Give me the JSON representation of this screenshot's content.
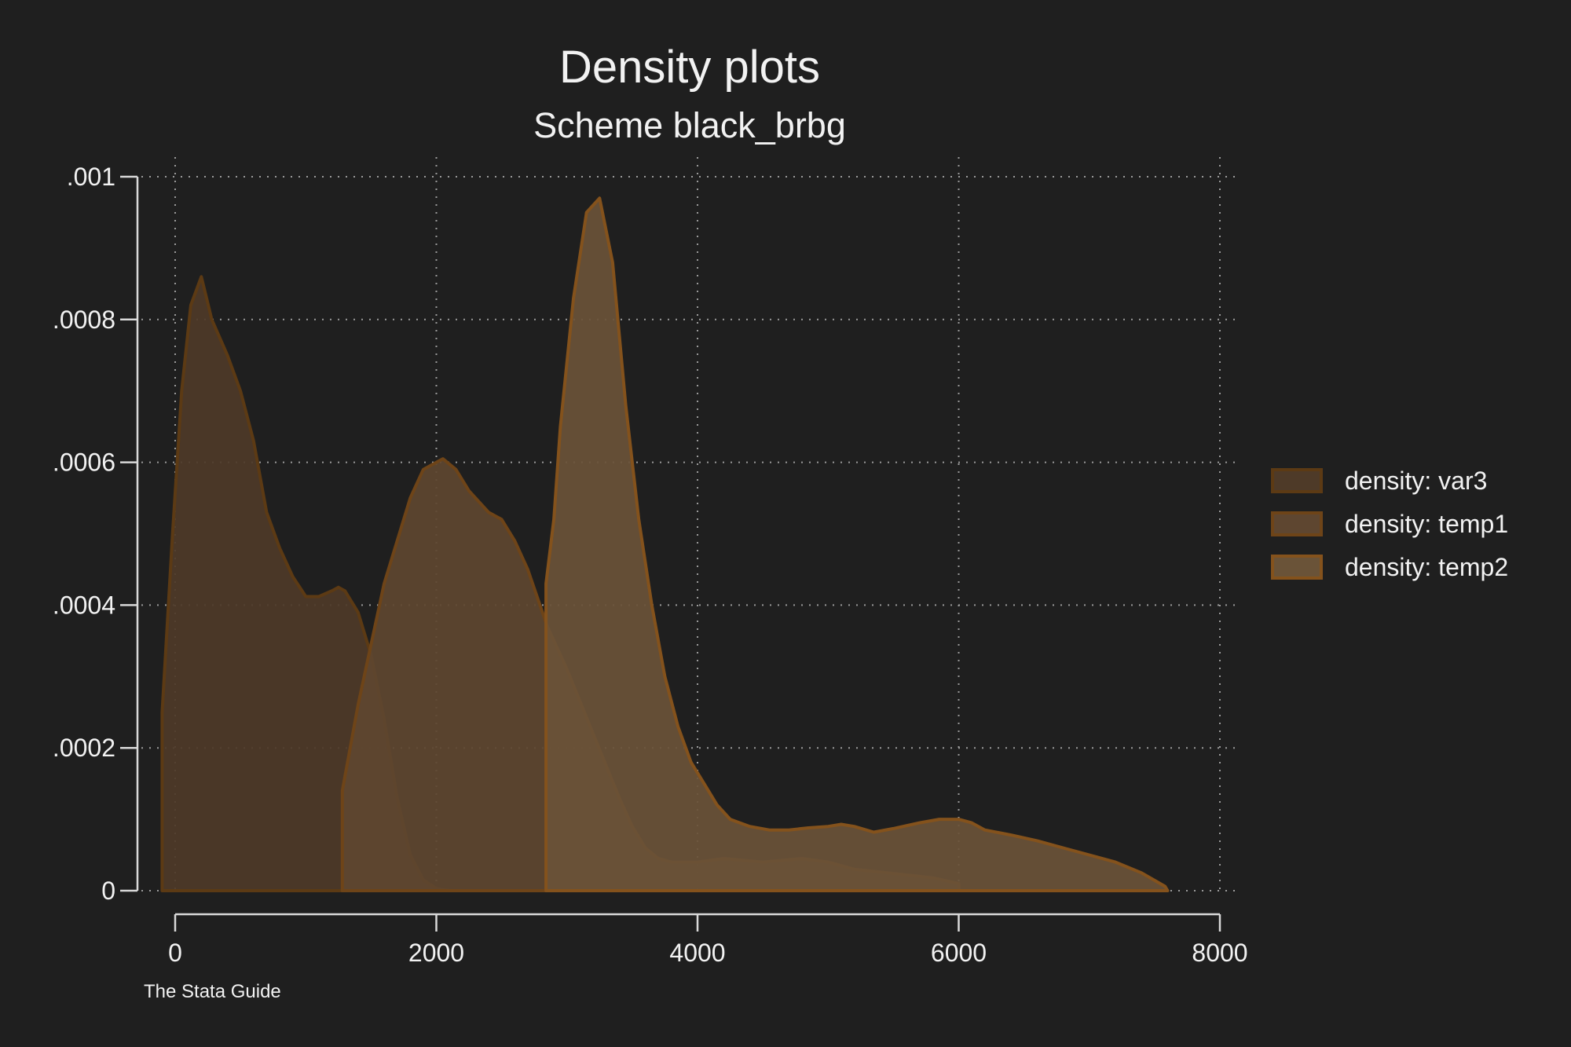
{
  "chart_data": {
    "type": "area",
    "title": "Density plots",
    "subtitle": "Scheme black_brbg",
    "note": "The Stata Guide",
    "xlabel": "",
    "ylabel": "",
    "xlim": [
      0,
      8000
    ],
    "ylim": [
      0,
      0.001
    ],
    "xticks": [
      0,
      2000,
      4000,
      6000,
      8000
    ],
    "xtick_labels": [
      "0",
      "2000",
      "4000",
      "6000",
      "8000"
    ],
    "yticks": [
      0,
      0.0002,
      0.0004,
      0.0006,
      0.0008,
      0.001
    ],
    "ytick_labels": [
      "0",
      ".0002",
      ".0004",
      ".0006",
      ".0008",
      ".001"
    ],
    "grid": true,
    "legend_position": "right",
    "series": [
      {
        "name": "density: var3",
        "fill": "#4e3a28",
        "stroke": "#5c3a14",
        "points": [
          [
            -100,
            0
          ],
          [
            -100,
            0.00025
          ],
          [
            -20,
            0.0005
          ],
          [
            50,
            0.0007
          ],
          [
            120,
            0.00082
          ],
          [
            200,
            0.00086
          ],
          [
            280,
            0.0008
          ],
          [
            400,
            0.00075
          ],
          [
            500,
            0.0007
          ],
          [
            600,
            0.00063
          ],
          [
            700,
            0.00053
          ],
          [
            800,
            0.00048
          ],
          [
            900,
            0.00044
          ],
          [
            1000,
            0.000412
          ],
          [
            1100,
            0.000412
          ],
          [
            1200,
            0.00042
          ],
          [
            1250,
            0.000425
          ],
          [
            1300,
            0.00042
          ],
          [
            1400,
            0.00039
          ],
          [
            1500,
            0.00033
          ],
          [
            1600,
            0.00024
          ],
          [
            1700,
            0.00013
          ],
          [
            1800,
            5e-05
          ],
          [
            1900,
            1.5e-05
          ],
          [
            2000,
            3e-06
          ],
          [
            2100,
            0
          ]
        ]
      },
      {
        "name": "density: temp1",
        "fill": "#5e4630",
        "stroke": "#6e4418",
        "points": [
          [
            1280,
            0
          ],
          [
            1280,
            0.00014
          ],
          [
            1400,
            0.00026
          ],
          [
            1600,
            0.00043
          ],
          [
            1800,
            0.00055
          ],
          [
            1900,
            0.00059
          ],
          [
            2000,
            0.0006
          ],
          [
            2050,
            0.000605
          ],
          [
            2150,
            0.00059
          ],
          [
            2250,
            0.00056
          ],
          [
            2400,
            0.00053
          ],
          [
            2500,
            0.00052
          ],
          [
            2600,
            0.00049
          ],
          [
            2700,
            0.00045
          ],
          [
            2850,
            0.00037
          ],
          [
            3000,
            0.00031
          ],
          [
            3200,
            0.00022
          ],
          [
            3400,
            0.00013
          ],
          [
            3500,
            9e-05
          ],
          [
            3600,
            6e-05
          ],
          [
            3700,
            4.5e-05
          ],
          [
            3800,
            4e-05
          ],
          [
            4000,
            4e-05
          ],
          [
            4200,
            4.5e-05
          ],
          [
            4500,
            4e-05
          ],
          [
            4800,
            4.5e-05
          ],
          [
            5000,
            4e-05
          ],
          [
            5200,
            3e-05
          ],
          [
            5600,
            2.2e-05
          ],
          [
            5800,
            1.8e-05
          ],
          [
            6000,
            1e-05
          ],
          [
            6000,
            0
          ]
        ]
      },
      {
        "name": "density: temp2",
        "fill": "#6a5338",
        "stroke": "#84521c",
        "points": [
          [
            2840,
            0
          ],
          [
            2840,
            0.00043
          ],
          [
            2900,
            0.00052
          ],
          [
            2950,
            0.00065
          ],
          [
            3050,
            0.00083
          ],
          [
            3150,
            0.00095
          ],
          [
            3250,
            0.00097
          ],
          [
            3350,
            0.00088
          ],
          [
            3450,
            0.00068
          ],
          [
            3550,
            0.00052
          ],
          [
            3650,
            0.0004
          ],
          [
            3750,
            0.0003
          ],
          [
            3850,
            0.00023
          ],
          [
            3950,
            0.00018
          ],
          [
            4050,
            0.00015
          ],
          [
            4150,
            0.00012
          ],
          [
            4250,
            0.0001
          ],
          [
            4400,
            9e-05
          ],
          [
            4550,
            8.5e-05
          ],
          [
            4700,
            8.5e-05
          ],
          [
            4850,
            8.8e-05
          ],
          [
            5000,
            9e-05
          ],
          [
            5100,
            9.3e-05
          ],
          [
            5200,
            9e-05
          ],
          [
            5350,
            8.2e-05
          ],
          [
            5500,
            8.7e-05
          ],
          [
            5700,
            9.5e-05
          ],
          [
            5850,
            0.0001
          ],
          [
            6000,
            0.0001
          ],
          [
            6100,
            9.5e-05
          ],
          [
            6200,
            8.5e-05
          ],
          [
            6400,
            7.8e-05
          ],
          [
            6600,
            7e-05
          ],
          [
            6800,
            6e-05
          ],
          [
            7000,
            5e-05
          ],
          [
            7200,
            4e-05
          ],
          [
            7400,
            2.5e-05
          ],
          [
            7580,
            6e-06
          ],
          [
            7600,
            0
          ]
        ]
      }
    ]
  }
}
